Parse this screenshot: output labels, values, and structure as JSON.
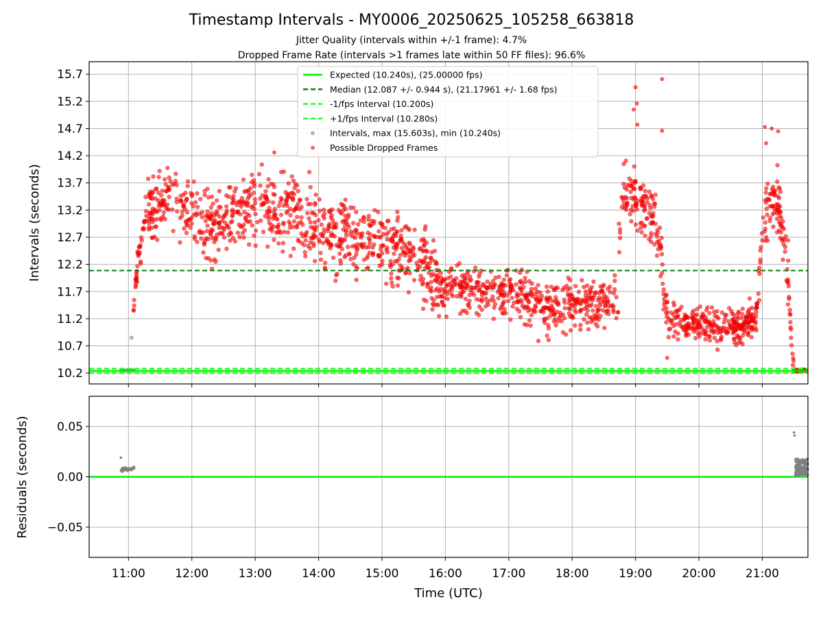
{
  "chart_data": [
    {
      "type": "scatter",
      "title": "Timestamp Intervals - MY0006_20250625_105258_663818",
      "subtitle_lines": [
        "Jitter Quality (intervals within +/-1 frame): 4.7%",
        "Dropped Frame Rate (intervals >1 frames late within 50 FF files): 96.6%"
      ],
      "xlabel": "",
      "ylabel": "Intervals (seconds)",
      "xlim": [
        10.38,
        21.72
      ],
      "ylim": [
        10.0,
        15.93
      ],
      "yticks": [
        10.2,
        10.7,
        11.2,
        11.7,
        12.2,
        12.7,
        13.2,
        13.7,
        14.2,
        14.7,
        15.2,
        15.7
      ],
      "ytick_labels": [
        "10.2",
        "10.7",
        "11.2",
        "11.7",
        "12.2",
        "12.7",
        "13.2",
        "13.7",
        "14.2",
        "14.7",
        "15.2",
        "15.7"
      ],
      "grid": true,
      "legend_position": "top-center",
      "legend": [
        "Expected (10.240s), (25.00000 fps)",
        "Median (12.087 +/- 0.944 s), (21.17961 +/- 1.68 fps)",
        "-1/fps Interval (10.200s)",
        "+1/fps Interval (10.280s)",
        "Intervals, max (15.603s), min (10.240s)",
        "Possible Dropped Frames"
      ],
      "reference_lines": {
        "expected": 10.24,
        "median": 12.087,
        "minus_one_fps": 10.2,
        "plus_one_fps": 10.28
      },
      "series": [
        {
          "kind": "dropped_frames_trend",
          "x": [
            11.08,
            11.15,
            11.25,
            11.4,
            11.6,
            11.8,
            12.0,
            12.2,
            12.5,
            12.8,
            13.0,
            13.3,
            13.6,
            13.9,
            14.1,
            14.4,
            14.7,
            15.0,
            15.3,
            15.6,
            15.8,
            15.95,
            16.1,
            16.4,
            16.7,
            17.0,
            17.3,
            17.6,
            17.9,
            18.2,
            18.5,
            18.73,
            18.74,
            18.8,
            18.95,
            19.1,
            19.3,
            19.42,
            19.45,
            19.6,
            19.8,
            20.0,
            20.3,
            20.6,
            20.9,
            21.0,
            21.1,
            21.25,
            21.35,
            21.42,
            21.47,
            21.5
          ],
          "y": [
            11.35,
            12.3,
            12.9,
            13.3,
            13.55,
            13.45,
            13.15,
            12.95,
            13.05,
            13.2,
            13.25,
            13.2,
            13.2,
            12.95,
            12.75,
            12.7,
            12.65,
            12.55,
            12.45,
            12.3,
            12.05,
            11.7,
            11.8,
            11.75,
            11.7,
            11.65,
            11.55,
            11.45,
            11.45,
            11.45,
            11.5,
            11.5,
            12.8,
            13.45,
            13.5,
            13.3,
            13.1,
            12.2,
            11.35,
            11.2,
            11.15,
            11.15,
            11.1,
            11.05,
            11.2,
            12.8,
            13.3,
            13.35,
            12.8,
            11.7,
            10.6,
            10.26
          ]
        },
        {
          "kind": "dropped_frames_outliers",
          "x": [
            18.97,
            19.0,
            19.02,
            19.03,
            19.42,
            19.42,
            21.04,
            21.06,
            21.15,
            21.25,
            13.3,
            16.1,
            19.5
          ],
          "y": [
            15.05,
            15.46,
            15.16,
            14.77,
            15.61,
            14.66,
            14.73,
            14.43,
            14.7,
            14.65,
            14.26,
            11.65,
            10.48
          ]
        },
        {
          "kind": "nominal_intervals",
          "x": [
            11.05
          ],
          "y": [
            10.85
          ]
        }
      ]
    },
    {
      "type": "scatter",
      "title": "",
      "xlabel": "Time (UTC)",
      "ylabel": "Residuals (seconds)",
      "xlim": [
        10.38,
        21.72
      ],
      "ylim": [
        -0.08,
        0.08
      ],
      "yticks": [
        -0.05,
        0.0,
        0.05
      ],
      "ytick_labels": [
        "−0.05",
        "0.00",
        "0.05"
      ],
      "xticks": [
        11,
        12,
        13,
        14,
        15,
        16,
        17,
        18,
        19,
        20,
        21
      ],
      "xtick_labels": [
        "11:00",
        "12:00",
        "13:00",
        "14:00",
        "15:00",
        "16:00",
        "17:00",
        "18:00",
        "19:00",
        "20:00",
        "21:00"
      ],
      "grid": true,
      "zero_line": 0.0,
      "series": [
        {
          "kind": "early_residuals",
          "x_range": [
            10.88,
            11.1
          ],
          "values": [
            0.007,
            0.009,
            0.008,
            0.007
          ],
          "outliers": [
            [
              10.88,
              0.019
            ],
            [
              10.9,
              0.005
            ]
          ]
        },
        {
          "kind": "late_residuals",
          "x_range": [
            21.52,
            21.72
          ],
          "max": 0.017,
          "outliers": [
            [
              21.5,
              0.044
            ],
            [
              21.51,
              0.041
            ]
          ]
        }
      ]
    }
  ],
  "colors": {
    "expected": "#00ee00",
    "median": "#008000",
    "fps_bounds": "#22ff22",
    "dropped": "#ff0000",
    "nominal": "#808080",
    "grid": "#b0b0b0",
    "axis": "#000000"
  }
}
